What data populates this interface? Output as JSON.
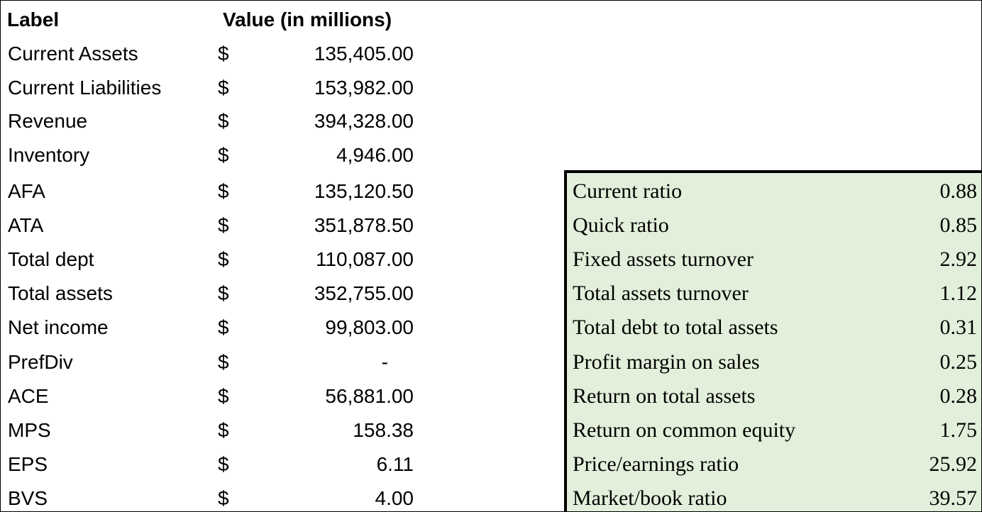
{
  "left_table": {
    "header": [
      "Label",
      "Value (in millions)"
    ],
    "rows": [
      [
        "Current Assets",
        "$",
        "135,405.00"
      ],
      [
        "Current Liabilities",
        "$",
        "153,982.00"
      ],
      [
        "Revenue",
        "$",
        "394,328.00"
      ],
      [
        "Inventory",
        "$",
        "4,946.00"
      ],
      [
        "AFA",
        "$",
        "135,120.50"
      ],
      [
        "ATA",
        "$",
        "351,878.50"
      ],
      [
        "Total dept",
        "$",
        "110,087.00"
      ],
      [
        "Total assets",
        "$",
        "352,755.00"
      ],
      [
        "Net income",
        "$",
        "99,803.00"
      ],
      [
        "PrefDiv",
        "$",
        "-"
      ],
      [
        "ACE",
        "$",
        "56,881.00"
      ],
      [
        "MPS",
        "$",
        "158.38"
      ],
      [
        "EPS",
        "$",
        "6.11"
      ],
      [
        "BVS",
        "$",
        "4.00"
      ]
    ]
  },
  "right_table": {
    "rows": [
      [
        "Current ratio",
        "0.88"
      ],
      [
        "Quick ratio",
        "0.85"
      ],
      [
        "Fixed assets turnover",
        "2.92"
      ],
      [
        "Total assets turnover",
        "1.12"
      ],
      [
        "Total debt to total assets",
        "0.31"
      ],
      [
        "Profit margin on sales",
        "0.25"
      ],
      [
        "Return on total assets",
        "0.28"
      ],
      [
        "Return on common equity",
        "1.75"
      ],
      [
        "Price/earnings ratio",
        "25.92"
      ],
      [
        "Market/book ratio",
        "39.57"
      ]
    ]
  }
}
